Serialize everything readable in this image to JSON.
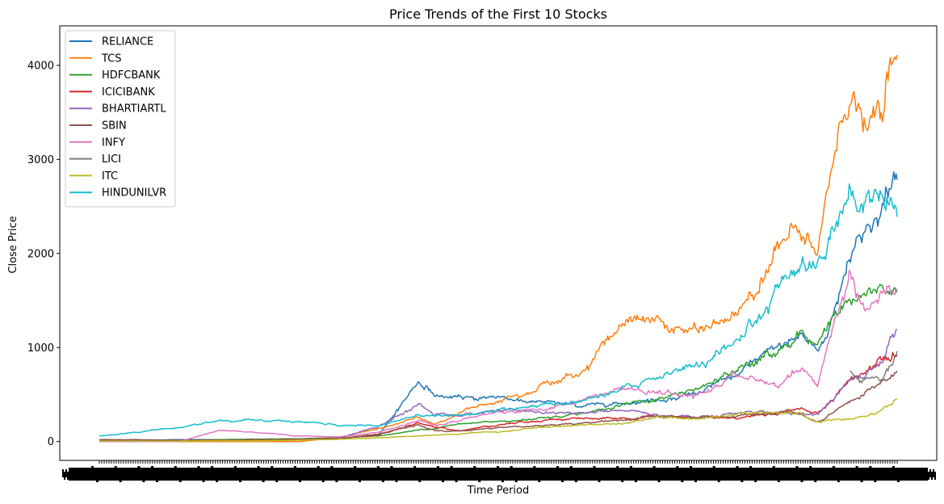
{
  "chart_data": {
    "type": "line",
    "title": "Price Trends of the First 10 Stocks",
    "xlabel": "Time Period",
    "ylabel": "Close Price",
    "ylim": [
      -200,
      4420
    ],
    "yticks": [
      0,
      1000,
      2000,
      3000,
      4000
    ],
    "x_tick_labels_note": "dense overlapping black tick labels along x-axis",
    "legend_position": "top-left",
    "grid": false,
    "x_anchor_points": [
      0,
      0.05,
      0.1,
      0.15,
      0.2,
      0.25,
      0.3,
      0.35,
      0.4,
      0.42,
      0.45,
      0.5,
      0.55,
      0.6,
      0.65,
      0.7,
      0.75,
      0.8,
      0.85,
      0.88,
      0.9,
      0.92,
      0.94,
      0.96,
      0.98,
      1.0
    ],
    "series": [
      {
        "name": "RELIANCE",
        "color": "#1f77b4",
        "values": [
          10,
          15,
          20,
          20,
          20,
          25,
          30,
          70,
          650,
          500,
          450,
          480,
          420,
          380,
          420,
          450,
          520,
          700,
          1000,
          1150,
          950,
          1350,
          2000,
          2300,
          2450,
          2800
        ]
      },
      {
        "name": "TCS",
        "color": "#ff7f0e",
        "values": [
          0,
          0,
          0,
          0,
          0,
          0,
          40,
          140,
          250,
          180,
          300,
          450,
          600,
          700,
          1250,
          1250,
          1150,
          1350,
          2100,
          2200,
          1900,
          3000,
          3800,
          3300,
          3500,
          4000
        ]
      },
      {
        "name": "HDFCBANK",
        "color": "#2ca02c",
        "values": [
          5,
          10,
          15,
          20,
          25,
          30,
          40,
          60,
          120,
          150,
          180,
          220,
          250,
          300,
          380,
          450,
          550,
          750,
          950,
          1200,
          1000,
          1400,
          1500,
          1500,
          1600,
          1550
        ]
      },
      {
        "name": "ICICIBANK",
        "color": "#d62728",
        "values": [
          5,
          10,
          10,
          15,
          20,
          25,
          35,
          70,
          200,
          150,
          120,
          180,
          230,
          250,
          230,
          260,
          250,
          260,
          300,
          350,
          300,
          450,
          650,
          750,
          900,
          1000
        ]
      },
      {
        "name": "BHARTIARTL",
        "color": "#9467bd",
        "values": [
          5,
          10,
          10,
          10,
          15,
          20,
          40,
          150,
          400,
          300,
          280,
          330,
          310,
          300,
          330,
          280,
          270,
          300,
          310,
          300,
          280,
          450,
          680,
          650,
          800,
          1200
        ]
      },
      {
        "name": "SBIN",
        "color": "#8c564b",
        "values": [
          20,
          20,
          15,
          15,
          20,
          25,
          35,
          80,
          180,
          120,
          110,
          150,
          170,
          190,
          230,
          260,
          250,
          270,
          300,
          280,
          200,
          300,
          400,
          500,
          600,
          750
        ]
      },
      {
        "name": "INFY",
        "color": "#e377c2",
        "values": [
          0,
          0,
          0,
          120,
          100,
          60,
          50,
          100,
          230,
          180,
          220,
          320,
          350,
          420,
          560,
          520,
          480,
          700,
          600,
          800,
          600,
          1250,
          1800,
          1400,
          1500,
          1600
        ]
      },
      {
        "name": "LICI",
        "color": "#7f7f7f",
        "values": [
          null,
          null,
          null,
          null,
          null,
          null,
          null,
          null,
          null,
          null,
          null,
          null,
          null,
          null,
          null,
          null,
          null,
          null,
          null,
          null,
          null,
          null,
          750,
          650,
          600,
          950
        ]
      },
      {
        "name": "ITC",
        "color": "#bcbd22",
        "values": [
          5,
          5,
          5,
          10,
          10,
          15,
          25,
          40,
          60,
          70,
          80,
          110,
          140,
          170,
          200,
          250,
          230,
          280,
          300,
          300,
          200,
          230,
          250,
          300,
          350,
          450
        ]
      },
      {
        "name": "HINDUNILVR",
        "color": "#17becf",
        "values": [
          60,
          100,
          150,
          220,
          230,
          200,
          180,
          160,
          300,
          260,
          280,
          330,
          380,
          420,
          520,
          700,
          800,
          1000,
          1600,
          2000,
          1900,
          2400,
          2600,
          2500,
          2600,
          2450
        ]
      }
    ]
  }
}
